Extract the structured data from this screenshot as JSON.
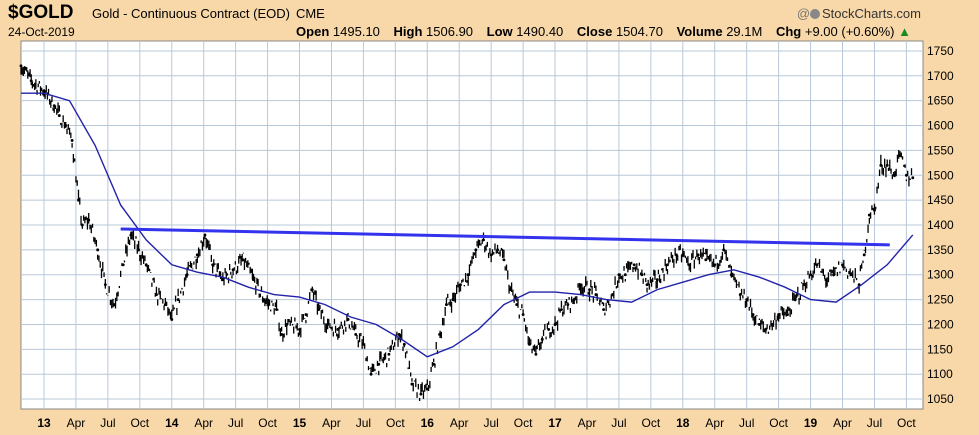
{
  "header": {
    "ticker": "$GOLD",
    "description": "Gold - Continuous Contract (EOD)",
    "exchange": "CME",
    "credit": "StockCharts.com",
    "credit_prefix": "@",
    "date": "24-Oct-2019",
    "quote": {
      "open_label": "Open",
      "open": "1495.10",
      "high_label": "High",
      "high": "1506.90",
      "low_label": "Low",
      "low": "1490.40",
      "close_label": "Close",
      "close": "1504.70",
      "volume_label": "Volume",
      "volume": "29.1M",
      "chg_label": "Chg",
      "chg": "+9.00 (+0.60%)",
      "chg_arrow": "▲"
    }
  },
  "colors": {
    "background": "#f8d8a8",
    "plot_background": "#ffffff",
    "grid": "#b8c8d8",
    "price": "#000000",
    "moving_average": "#2222aa",
    "trendline": "#3333ee"
  },
  "chart_data": {
    "type": "line",
    "title": "",
    "xlabel": "",
    "ylabel": "",
    "ylim": [
      1030,
      1770
    ],
    "y_ticks": [
      1050,
      1100,
      1150,
      1200,
      1250,
      1300,
      1350,
      1400,
      1450,
      1500,
      1550,
      1600,
      1650,
      1700,
      1750
    ],
    "x_ticks": [
      {
        "label": "13",
        "year": true,
        "t": 2013.0
      },
      {
        "label": "Apr",
        "year": false,
        "t": 2013.25
      },
      {
        "label": "Jul",
        "year": false,
        "t": 2013.5
      },
      {
        "label": "Oct",
        "year": false,
        "t": 2013.75
      },
      {
        "label": "14",
        "year": true,
        "t": 2014.0
      },
      {
        "label": "Apr",
        "year": false,
        "t": 2014.25
      },
      {
        "label": "Jul",
        "year": false,
        "t": 2014.5
      },
      {
        "label": "Oct",
        "year": false,
        "t": 2014.75
      },
      {
        "label": "15",
        "year": true,
        "t": 2015.0
      },
      {
        "label": "Apr",
        "year": false,
        "t": 2015.25
      },
      {
        "label": "Jul",
        "year": false,
        "t": 2015.5
      },
      {
        "label": "Oct",
        "year": false,
        "t": 2015.75
      },
      {
        "label": "16",
        "year": true,
        "t": 2016.0
      },
      {
        "label": "Apr",
        "year": false,
        "t": 2016.25
      },
      {
        "label": "Jul",
        "year": false,
        "t": 2016.5
      },
      {
        "label": "Oct",
        "year": false,
        "t": 2016.75
      },
      {
        "label": "17",
        "year": true,
        "t": 2017.0
      },
      {
        "label": "Apr",
        "year": false,
        "t": 2017.25
      },
      {
        "label": "Jul",
        "year": false,
        "t": 2017.5
      },
      {
        "label": "Oct",
        "year": false,
        "t": 2017.75
      },
      {
        "label": "18",
        "year": true,
        "t": 2018.0
      },
      {
        "label": "Apr",
        "year": false,
        "t": 2018.25
      },
      {
        "label": "Jul",
        "year": false,
        "t": 2018.5
      },
      {
        "label": "Oct",
        "year": false,
        "t": 2018.75
      },
      {
        "label": "19",
        "year": true,
        "t": 2019.0
      },
      {
        "label": "Apr",
        "year": false,
        "t": 2019.25
      },
      {
        "label": "Jul",
        "year": false,
        "t": 2019.5
      },
      {
        "label": "Oct",
        "year": false,
        "t": 2019.75
      }
    ],
    "grid": true,
    "series": [
      {
        "role": "price",
        "x": [
          2012.82,
          2012.9,
          2013.0,
          2013.08,
          2013.12,
          2013.17,
          2013.22,
          2013.27,
          2013.3,
          2013.35,
          2013.42,
          2013.48,
          2013.55,
          2013.62,
          2013.68,
          2013.74,
          2013.8,
          2013.88,
          2013.95,
          2014.0,
          2014.05,
          2014.12,
          2014.2,
          2014.26,
          2014.32,
          2014.4,
          2014.48,
          2014.56,
          2014.64,
          2014.72,
          2014.82,
          2014.86,
          2014.9,
          2015.0,
          2015.05,
          2015.1,
          2015.15,
          2015.22,
          2015.3,
          2015.38,
          2015.44,
          2015.5,
          2015.56,
          2015.62,
          2015.7,
          2015.78,
          2015.82,
          2015.88,
          2015.95,
          2016.0,
          2016.05,
          2016.1,
          2016.15,
          2016.2,
          2016.26,
          2016.32,
          2016.38,
          2016.44,
          2016.5,
          2016.55,
          2016.6,
          2016.65,
          2016.7,
          2016.75,
          2016.8,
          2016.85,
          2016.9,
          2016.95,
          2017.0,
          2017.05,
          2017.1,
          2017.15,
          2017.2,
          2017.27,
          2017.32,
          2017.38,
          2017.45,
          2017.5,
          2017.55,
          2017.62,
          2017.68,
          2017.72,
          2017.8,
          2017.88,
          2017.95,
          2018.0,
          2018.05,
          2018.12,
          2018.18,
          2018.25,
          2018.32,
          2018.38,
          2018.45,
          2018.5,
          2018.55,
          2018.6,
          2018.65,
          2018.7,
          2018.75,
          2018.82,
          2018.88,
          2018.95,
          2019.0,
          2019.05,
          2019.12,
          2019.18,
          2019.25,
          2019.32,
          2019.38,
          2019.42,
          2019.46,
          2019.5,
          2019.55,
          2019.6,
          2019.65,
          2019.7,
          2019.75,
          2019.8
        ],
        "y": [
          1720,
          1690,
          1670,
          1640,
          1620,
          1600,
          1570,
          1450,
          1400,
          1410,
          1350,
          1280,
          1240,
          1320,
          1380,
          1350,
          1320,
          1260,
          1240,
          1210,
          1250,
          1300,
          1340,
          1380,
          1320,
          1290,
          1310,
          1330,
          1290,
          1250,
          1230,
          1180,
          1200,
          1190,
          1220,
          1270,
          1230,
          1200,
          1190,
          1210,
          1180,
          1160,
          1100,
          1120,
          1140,
          1180,
          1160,
          1080,
          1060,
          1070,
          1120,
          1180,
          1240,
          1250,
          1280,
          1300,
          1350,
          1370,
          1340,
          1350,
          1330,
          1270,
          1240,
          1220,
          1160,
          1140,
          1170,
          1190,
          1200,
          1230,
          1240,
          1250,
          1280,
          1270,
          1260,
          1230,
          1260,
          1300,
          1300,
          1320,
          1300,
          1280,
          1290,
          1320,
          1340,
          1340,
          1320,
          1340,
          1330,
          1320,
          1350,
          1300,
          1260,
          1250,
          1220,
          1200,
          1190,
          1200,
          1220,
          1220,
          1250,
          1280,
          1300,
          1320,
          1290,
          1300,
          1320,
          1300,
          1280,
          1340,
          1420,
          1430,
          1520,
          1520,
          1500,
          1540,
          1500,
          1495
        ]
      },
      {
        "role": "moving_average",
        "x": [
          2012.82,
          2013.0,
          2013.2,
          2013.4,
          2013.6,
          2013.8,
          2014.0,
          2014.2,
          2014.4,
          2014.6,
          2014.8,
          2015.0,
          2015.2,
          2015.4,
          2015.6,
          2015.8,
          2016.0,
          2016.2,
          2016.4,
          2016.6,
          2016.8,
          2017.0,
          2017.2,
          2017.4,
          2017.6,
          2017.8,
          2018.0,
          2018.2,
          2018.4,
          2018.6,
          2018.8,
          2019.0,
          2019.2,
          2019.4,
          2019.6,
          2019.8
        ],
        "y": [
          1665,
          1665,
          1650,
          1560,
          1440,
          1370,
          1320,
          1305,
          1295,
          1275,
          1260,
          1255,
          1240,
          1215,
          1200,
          1170,
          1135,
          1155,
          1190,
          1240,
          1265,
          1265,
          1260,
          1250,
          1245,
          1270,
          1285,
          1300,
          1310,
          1295,
          1275,
          1250,
          1245,
          1280,
          1320,
          1380
        ]
      },
      {
        "role": "trendline",
        "x": [
          2013.6,
          2019.62
        ],
        "y": [
          1392,
          1360
        ]
      }
    ]
  }
}
